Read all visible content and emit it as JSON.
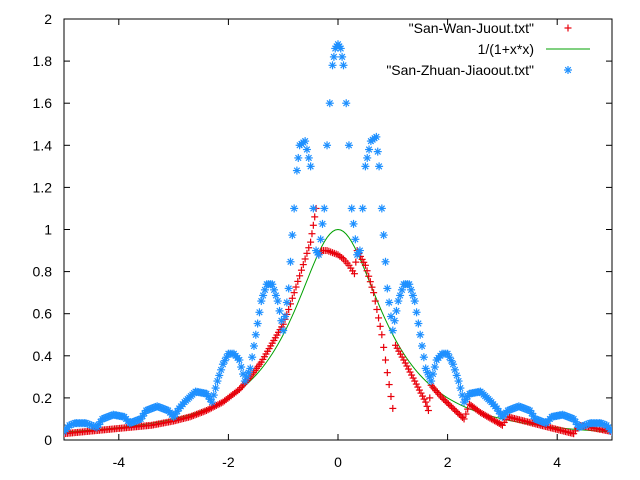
{
  "chart_data": {
    "type": "scatter",
    "title": "",
    "xlabel": "",
    "ylabel": "",
    "xlim": [
      -5,
      5
    ],
    "ylim": [
      0,
      2
    ],
    "x_ticks": [
      -4,
      -2,
      0,
      2,
      4
    ],
    "y_ticks": [
      0,
      0.2,
      0.4,
      0.6,
      0.8,
      1,
      1.2,
      1.4,
      1.6,
      1.8,
      2
    ],
    "x_tick_labels": [
      "-4",
      "-2",
      "0",
      "2",
      "4"
    ],
    "y_tick_labels": [
      "0",
      "0.2",
      "0.4",
      "0.6",
      "0.8",
      "1",
      "1.2",
      "1.4",
      "1.6",
      "1.8",
      "2"
    ],
    "grid": false,
    "legend_position": "top-right",
    "series": [
      {
        "name": "\"San-Wan-Juout.txt\"",
        "style": "points-plus",
        "color": "#e8000b",
        "points": [
          [
            -5.0,
            0.03
          ],
          [
            -4.6,
            0.04
          ],
          [
            -4.2,
            0.05
          ],
          [
            -3.8,
            0.06
          ],
          [
            -3.4,
            0.07
          ],
          [
            -3.0,
            0.09
          ],
          [
            -2.7,
            0.11
          ],
          [
            -2.4,
            0.14
          ],
          [
            -2.1,
            0.18
          ],
          [
            -1.8,
            0.24
          ],
          [
            -1.6,
            0.3
          ],
          [
            -1.4,
            0.37
          ],
          [
            -1.2,
            0.46
          ],
          [
            -1.0,
            0.55
          ],
          [
            -0.9,
            0.62
          ],
          [
            -0.8,
            0.7
          ],
          [
            -0.7,
            0.78
          ],
          [
            -0.6,
            0.86
          ],
          [
            -0.5,
            0.94
          ],
          [
            -0.45,
            1.02
          ],
          [
            -0.4,
            1.1
          ],
          [
            -0.35,
            0.88
          ],
          [
            -0.3,
            0.9
          ],
          [
            -0.2,
            0.9
          ],
          [
            -0.1,
            0.89
          ],
          [
            0.0,
            0.88
          ],
          [
            0.1,
            0.86
          ],
          [
            0.2,
            0.83
          ],
          [
            0.3,
            0.79
          ],
          [
            0.35,
            0.9
          ],
          [
            0.5,
            0.83
          ],
          [
            0.65,
            0.7
          ],
          [
            0.8,
            0.5
          ],
          [
            0.9,
            0.32
          ],
          [
            1.0,
            0.15
          ],
          [
            1.05,
            0.45
          ],
          [
            1.2,
            0.38
          ],
          [
            1.4,
            0.28
          ],
          [
            1.6,
            0.18
          ],
          [
            1.65,
            0.14
          ],
          [
            1.7,
            0.26
          ],
          [
            1.9,
            0.2
          ],
          [
            2.1,
            0.15
          ],
          [
            2.3,
            0.1
          ],
          [
            2.4,
            0.17
          ],
          [
            2.6,
            0.13
          ],
          [
            2.8,
            0.1
          ],
          [
            3.0,
            0.07
          ],
          [
            3.1,
            0.11
          ],
          [
            3.4,
            0.09
          ],
          [
            3.7,
            0.07
          ],
          [
            4.0,
            0.05
          ],
          [
            4.3,
            0.03
          ],
          [
            4.4,
            0.07
          ],
          [
            4.6,
            0.06
          ],
          [
            4.8,
            0.05
          ],
          [
            5.0,
            0.04
          ]
        ]
      },
      {
        "name": "1/(1+x*x)",
        "style": "line",
        "color": "#00a000",
        "function": "1/(1+x*x)",
        "sample_count": 200
      },
      {
        "name": "\"San-Zhuan-Jiaoout.txt\"",
        "style": "points-star",
        "color": "#1e90ff",
        "points": [
          [
            -5.0,
            0.04
          ],
          [
            -4.9,
            0.07
          ],
          [
            -4.8,
            0.08
          ],
          [
            -4.6,
            0.08
          ],
          [
            -4.5,
            0.07
          ],
          [
            -4.4,
            0.06
          ],
          [
            -4.3,
            0.1
          ],
          [
            -4.1,
            0.12
          ],
          [
            -3.9,
            0.11
          ],
          [
            -3.8,
            0.08
          ],
          [
            -3.6,
            0.1
          ],
          [
            -3.5,
            0.14
          ],
          [
            -3.3,
            0.16
          ],
          [
            -3.1,
            0.14
          ],
          [
            -3.0,
            0.11
          ],
          [
            -2.9,
            0.15
          ],
          [
            -2.8,
            0.18
          ],
          [
            -2.6,
            0.23
          ],
          [
            -2.4,
            0.22
          ],
          [
            -2.3,
            0.18
          ],
          [
            -2.2,
            0.28
          ],
          [
            -2.1,
            0.36
          ],
          [
            -2.0,
            0.41
          ],
          [
            -1.9,
            0.41
          ],
          [
            -1.8,
            0.38
          ],
          [
            -1.7,
            0.28
          ],
          [
            -1.6,
            0.34
          ],
          [
            -1.5,
            0.5
          ],
          [
            -1.4,
            0.66
          ],
          [
            -1.3,
            0.74
          ],
          [
            -1.2,
            0.74
          ],
          [
            -1.1,
            0.66
          ],
          [
            -1.0,
            0.52
          ],
          [
            -0.9,
            0.72
          ],
          [
            -0.8,
            1.1
          ],
          [
            -0.75,
            1.28
          ],
          [
            -0.7,
            1.4
          ],
          [
            -0.6,
            1.42
          ],
          [
            -0.5,
            1.3
          ],
          [
            -0.45,
            1.1
          ],
          [
            -0.4,
            0.9
          ],
          [
            -0.35,
            0.88
          ],
          [
            -0.25,
            1.1
          ],
          [
            -0.2,
            1.4
          ],
          [
            -0.15,
            1.6
          ],
          [
            -0.1,
            1.78
          ],
          [
            -0.05,
            1.86
          ],
          [
            0.0,
            1.88
          ],
          [
            0.05,
            1.86
          ],
          [
            0.1,
            1.78
          ],
          [
            0.15,
            1.6
          ],
          [
            0.2,
            1.4
          ],
          [
            0.25,
            1.1
          ],
          [
            0.35,
            0.88
          ],
          [
            0.4,
            0.9
          ],
          [
            0.45,
            1.1
          ],
          [
            0.5,
            1.3
          ],
          [
            0.6,
            1.42
          ],
          [
            0.7,
            1.44
          ],
          [
            0.75,
            1.3
          ],
          [
            0.8,
            1.1
          ],
          [
            0.9,
            0.72
          ],
          [
            1.0,
            0.52
          ],
          [
            1.1,
            0.66
          ],
          [
            1.2,
            0.74
          ],
          [
            1.3,
            0.74
          ],
          [
            1.4,
            0.66
          ],
          [
            1.5,
            0.5
          ],
          [
            1.6,
            0.34
          ],
          [
            1.7,
            0.28
          ],
          [
            1.8,
            0.38
          ],
          [
            1.9,
            0.41
          ],
          [
            2.0,
            0.41
          ],
          [
            2.1,
            0.36
          ],
          [
            2.2,
            0.28
          ],
          [
            2.3,
            0.18
          ],
          [
            2.4,
            0.22
          ],
          [
            2.6,
            0.23
          ],
          [
            2.8,
            0.18
          ],
          [
            2.9,
            0.15
          ],
          [
            3.0,
            0.11
          ],
          [
            3.1,
            0.14
          ],
          [
            3.3,
            0.16
          ],
          [
            3.5,
            0.14
          ],
          [
            3.6,
            0.1
          ],
          [
            3.8,
            0.08
          ],
          [
            3.9,
            0.11
          ],
          [
            4.1,
            0.12
          ],
          [
            4.3,
            0.1
          ],
          [
            4.4,
            0.06
          ],
          [
            4.5,
            0.07
          ],
          [
            4.6,
            0.08
          ],
          [
            4.8,
            0.08
          ],
          [
            4.9,
            0.07
          ],
          [
            5.0,
            0.04
          ]
        ]
      }
    ]
  }
}
